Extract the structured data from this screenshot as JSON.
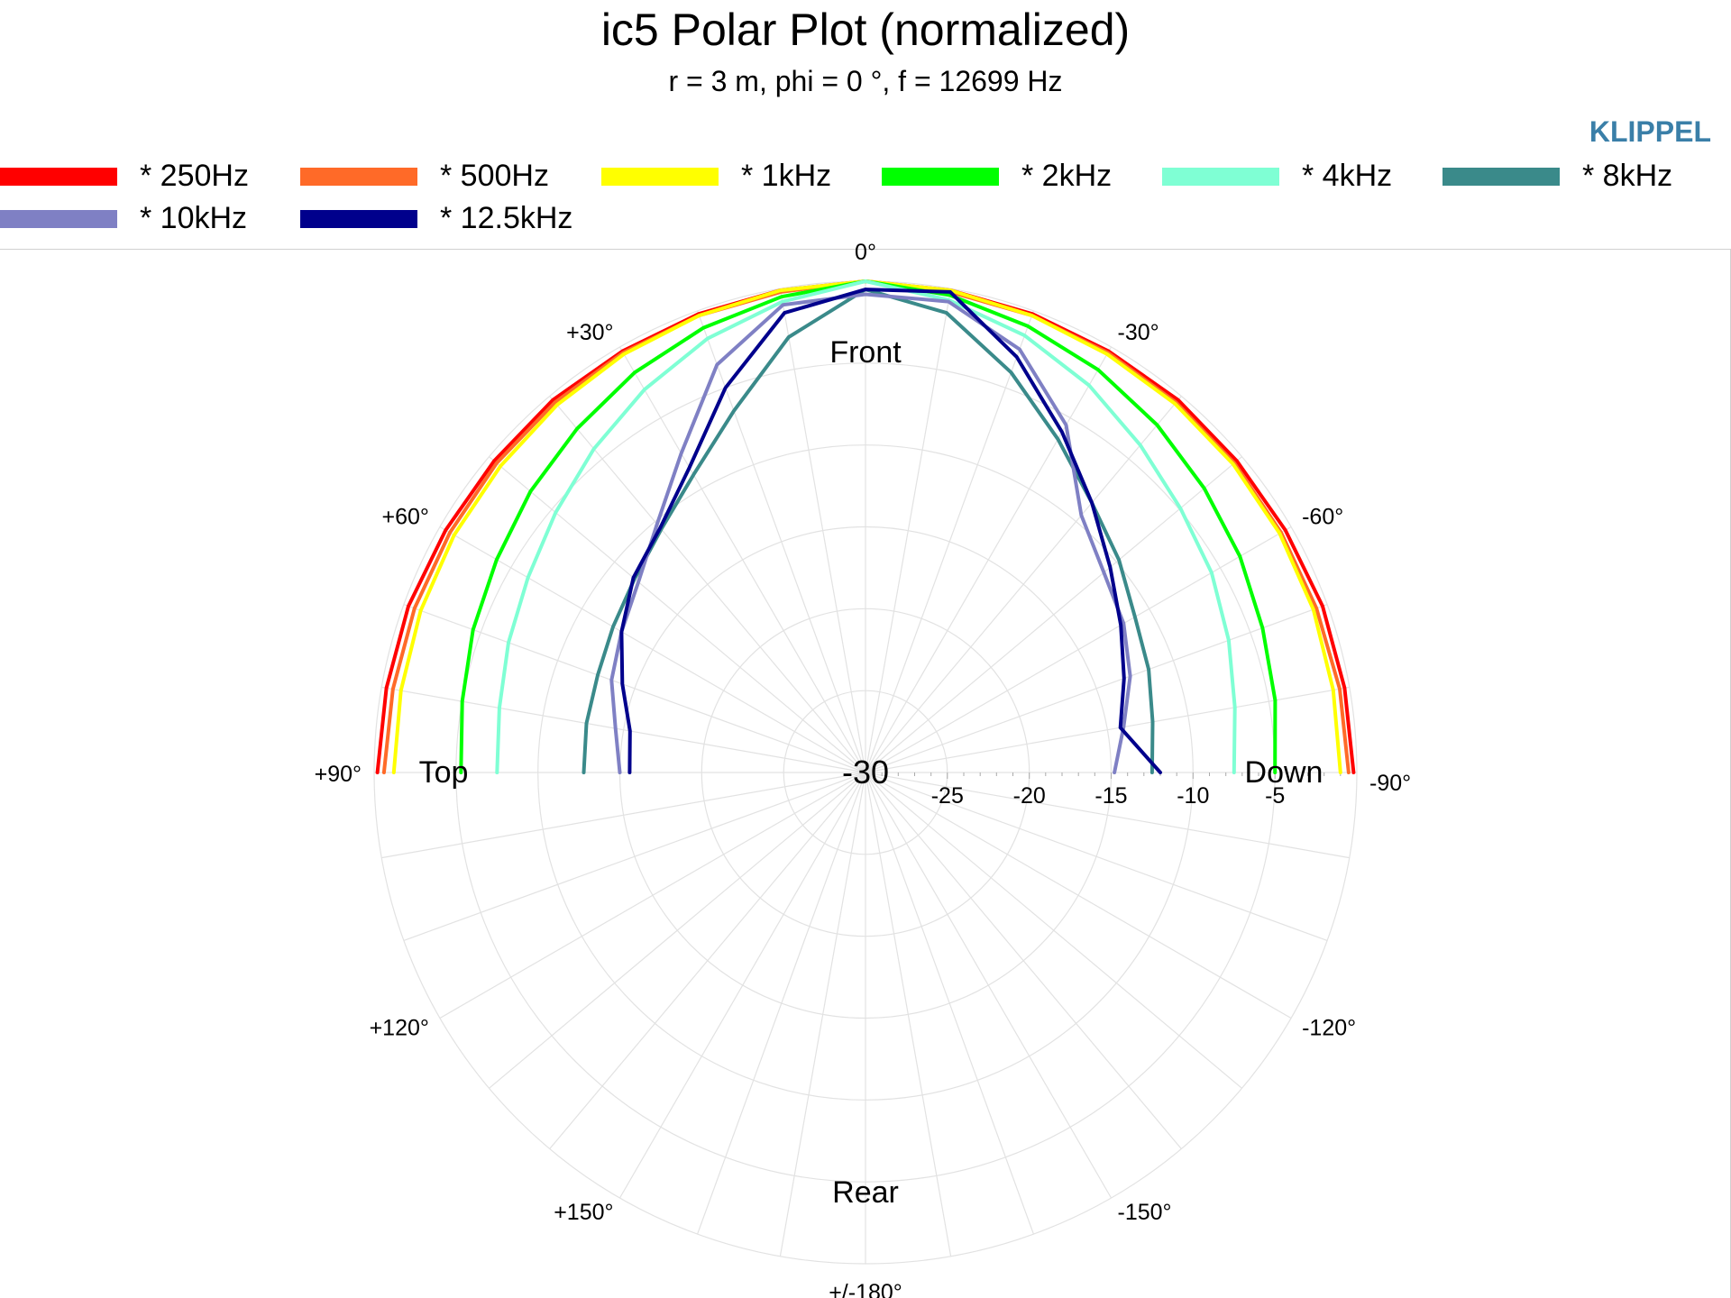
{
  "title": "ic5 Polar Plot (normalized)",
  "subtitle": "r = 3 m, phi = 0 °, f = 12699 Hz",
  "brand": "KLIPPEL",
  "legend": [
    {
      "label": "* 250Hz",
      "color": "#ff0000"
    },
    {
      "label": "* 500Hz",
      "color": "#ff6a28"
    },
    {
      "label": "* 1kHz",
      "color": "#ffff00"
    },
    {
      "label": "* 2kHz",
      "color": "#00ff00"
    },
    {
      "label": "* 4kHz",
      "color": "#7fffd4"
    },
    {
      "label": "* 8kHz",
      "color": "#3a8a8a"
    },
    {
      "label": "* 10kHz",
      "color": "#7f80c4"
    },
    {
      "label": "* 12.5kHz",
      "color": "#00008c"
    }
  ],
  "chart_data": {
    "type": "polar",
    "radial_range_db": [
      -30,
      0
    ],
    "radial_ticks": [
      "-30",
      "-25",
      "-20",
      "-15",
      "-10",
      "-5"
    ],
    "angle_labels": [
      {
        "deg": 0,
        "text": "0°"
      },
      {
        "deg": 30,
        "text": "+30°"
      },
      {
        "deg": 60,
        "text": "+60°"
      },
      {
        "deg": 90,
        "text": "+90°"
      },
      {
        "deg": 120,
        "text": "+120°"
      },
      {
        "deg": 150,
        "text": "+150°"
      },
      {
        "deg": 180,
        "text": "+/-180°"
      },
      {
        "deg": -30,
        "text": "-30°"
      },
      {
        "deg": -60,
        "text": "-60°"
      },
      {
        "deg": -90,
        "text": "-90°"
      },
      {
        "deg": -120,
        "text": "-120°"
      },
      {
        "deg": -150,
        "text": "-150°"
      }
    ],
    "region_labels": {
      "front": "Front",
      "rear": "Rear",
      "top": "Top",
      "down": "Down"
    },
    "angles_deg": [
      90,
      80,
      70,
      60,
      50,
      40,
      30,
      20,
      10,
      0,
      -10,
      -20,
      -30,
      -40,
      -50,
      -60,
      -70,
      -80,
      -90
    ],
    "series": [
      {
        "name": "* 250Hz",
        "color": "#ff0000",
        "values": [
          -0.2,
          -0.3,
          -0.3,
          -0.4,
          -0.4,
          -0.3,
          -0.3,
          -0.2,
          -0.1,
          0,
          -0.1,
          -0.2,
          -0.3,
          -0.3,
          -0.4,
          -0.4,
          -0.3,
          -0.3,
          -0.2
        ]
      },
      {
        "name": "* 500Hz",
        "color": "#ff6a28",
        "values": [
          -0.6,
          -0.7,
          -0.7,
          -0.7,
          -0.6,
          -0.5,
          -0.4,
          -0.3,
          -0.2,
          0,
          -0.2,
          -0.3,
          -0.4,
          -0.5,
          -0.6,
          -0.7,
          -0.7,
          -0.6,
          -0.5
        ]
      },
      {
        "name": "* 1kHz",
        "color": "#ffff00",
        "values": [
          -1.2,
          -1.2,
          -1.1,
          -1.0,
          -0.9,
          -0.7,
          -0.5,
          -0.3,
          -0.1,
          0,
          -0.1,
          -0.3,
          -0.5,
          -0.6,
          -0.7,
          -0.8,
          -0.9,
          -1.0,
          -1.0
        ]
      },
      {
        "name": "* 2kHz",
        "color": "#00ff00",
        "values": [
          -5.3,
          -5.0,
          -4.5,
          -4.0,
          -3.3,
          -2.6,
          -1.8,
          -1.1,
          -0.5,
          0,
          -0.4,
          -1.0,
          -1.6,
          -2.3,
          -3.0,
          -3.6,
          -4.2,
          -4.6,
          -5.0
        ]
      },
      {
        "name": "* 4kHz",
        "color": "#7fffd4",
        "values": [
          -7.5,
          -7.3,
          -6.8,
          -6.2,
          -5.3,
          -4.2,
          -3.0,
          -1.8,
          -0.8,
          0,
          -0.7,
          -1.6,
          -2.7,
          -3.9,
          -4.9,
          -5.6,
          -6.4,
          -7.1,
          -7.5
        ]
      },
      {
        "name": "* 8kHz",
        "color": "#3a8a8a",
        "values": [
          -12.8,
          -12.7,
          -12.6,
          -12.2,
          -11.6,
          -10.6,
          -9.0,
          -6.5,
          -3.0,
          -0.5,
          -1.5,
          -4.0,
          -6.5,
          -8.5,
          -9.8,
          -11.0,
          -11.6,
          -12.2,
          -12.5
        ]
      },
      {
        "name": "* 10kHz",
        "color": "#7f80c4",
        "values": [
          -15.0,
          -14.5,
          -13.5,
          -12.8,
          -11.9,
          -10.2,
          -7.5,
          -3.5,
          -1.0,
          -0.8,
          -0.8,
          -2.5,
          -5.5,
          -9.5,
          -11.0,
          -11.8,
          -12.8,
          -14.0,
          -14.8
        ]
      },
      {
        "name": "* 12.5kHz",
        "color": "#00008c",
        "values": [
          -15.6,
          -15.4,
          -14.2,
          -12.8,
          -11.5,
          -10.5,
          -8.5,
          -5.0,
          -1.5,
          -0.5,
          -0.2,
          -3.0,
          -6.0,
          -8.5,
          -10.5,
          -12.0,
          -13.2,
          -14.2,
          -12.0
        ]
      }
    ]
  }
}
